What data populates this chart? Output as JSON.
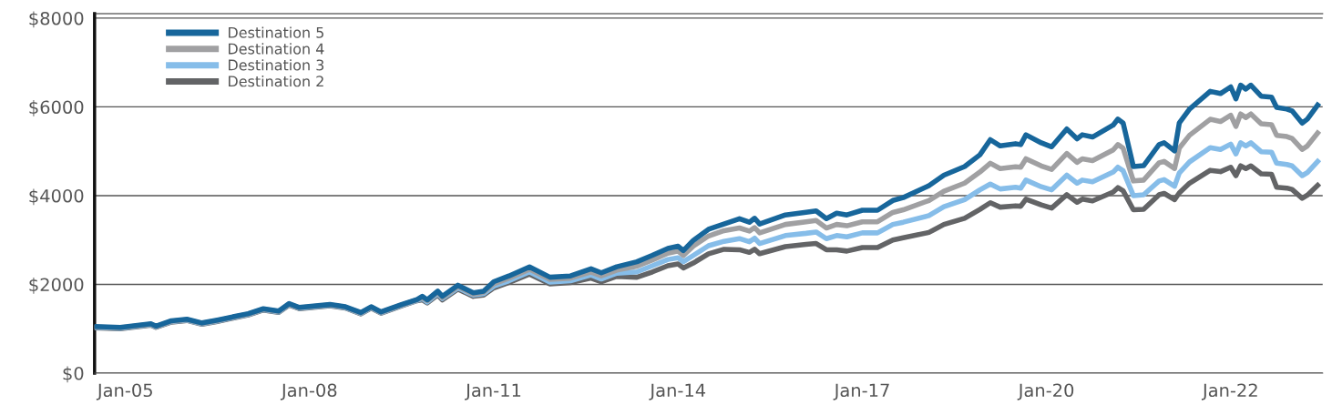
{
  "chart_data": {
    "type": "line",
    "x": [
      "2004-07",
      "2004-12",
      "2005-06",
      "2005-07",
      "2005-10",
      "2006-01",
      "2006-04",
      "2006-07",
      "2007-01",
      "2007-04",
      "2007-07",
      "2007-09",
      "2007-11",
      "2008-05",
      "2008-08",
      "2008-11",
      "2009-01",
      "2009-03",
      "2009-07",
      "2009-10",
      "2009-11",
      "2009-12",
      "2010-02",
      "2010-03",
      "2010-06",
      "2010-09",
      "2010-11",
      "2011-01",
      "2011-04",
      "2011-08",
      "2011-12",
      "2012-04",
      "2012-08",
      "2012-10",
      "2013-01",
      "2013-05",
      "2013-08",
      "2013-11",
      "2014-01",
      "2014-02",
      "2014-04",
      "2014-07",
      "2014-10",
      "2015-01",
      "2015-03",
      "2015-04",
      "2015-05",
      "2015-10",
      "2016-02",
      "2016-04",
      "2016-06",
      "2016-08",
      "2016-10",
      "2017-01",
      "2017-04",
      "2017-07",
      "2017-09",
      "2018-02",
      "2018-05",
      "2018-09",
      "2018-12",
      "2019-02",
      "2019-04",
      "2019-07",
      "2019-08",
      "2019-09",
      "2019-12",
      "2020-02",
      "2020-05",
      "2020-07",
      "2020-08",
      "2020-10",
      "2021-02",
      "2021-03",
      "2021-04",
      "2021-06",
      "2021-08",
      "2021-11",
      "2021-12",
      "2022-02",
      "2022-03",
      "2022-05",
      "2022-09",
      "2022-11",
      "2023-01",
      "2023-02",
      "2023-03",
      "2023-04",
      "2023-05",
      "2023-07",
      "2023-09",
      "2023-10",
      "2023-12",
      "2024-01",
      "2024-03",
      "2024-04",
      "2024-06"
    ],
    "series": [
      {
        "name": "Destination 5",
        "color": "#17669b",
        "values": [
          1050,
          1030,
          1110,
          1060,
          1180,
          1215,
          1130,
          1195,
          1340,
          1450,
          1400,
          1565,
          1480,
          1545,
          1495,
          1365,
          1495,
          1380,
          1545,
          1660,
          1730,
          1650,
          1845,
          1730,
          1980,
          1810,
          1845,
          2060,
          2190,
          2395,
          2160,
          2190,
          2350,
          2260,
          2395,
          2510,
          2655,
          2810,
          2860,
          2760,
          2990,
          3240,
          3360,
          3480,
          3400,
          3490,
          3360,
          3565,
          3625,
          3655,
          3480,
          3605,
          3565,
          3670,
          3670,
          3890,
          3955,
          4225,
          4460,
          4655,
          4920,
          5260,
          5120,
          5170,
          5150,
          5370,
          5190,
          5100,
          5500,
          5280,
          5370,
          5320,
          5590,
          5725,
          5635,
          4655,
          4675,
          5150,
          5190,
          5010,
          5635,
          5950,
          6350,
          6300,
          6450,
          6180,
          6490,
          6400,
          6490,
          6240,
          6220,
          5990,
          5950,
          5910,
          5635,
          5725,
          6040
        ]
      },
      {
        "name": "Destination 4",
        "color": "#a0a0a2",
        "values": [
          1040,
          1020,
          1100,
          1050,
          1170,
          1205,
          1120,
          1185,
          1330,
          1440,
          1390,
          1555,
          1470,
          1535,
          1485,
          1355,
          1485,
          1370,
          1535,
          1650,
          1700,
          1630,
          1820,
          1700,
          1950,
          1780,
          1820,
          2010,
          2140,
          2340,
          2110,
          2140,
          2280,
          2190,
          2320,
          2410,
          2550,
          2700,
          2750,
          2650,
          2860,
          3090,
          3210,
          3270,
          3200,
          3280,
          3160,
          3350,
          3410,
          3440,
          3270,
          3350,
          3320,
          3410,
          3410,
          3620,
          3680,
          3890,
          4100,
          4280,
          4530,
          4730,
          4610,
          4650,
          4640,
          4830,
          4670,
          4590,
          4950,
          4750,
          4830,
          4790,
          5030,
          5150,
          5070,
          4330,
          4350,
          4740,
          4770,
          4610,
          5070,
          5360,
          5720,
          5670,
          5810,
          5560,
          5840,
          5760,
          5840,
          5620,
          5600,
          5360,
          5330,
          5290,
          5040,
          5120,
          5410
        ]
      },
      {
        "name": "Destination 3",
        "color": "#86bde9",
        "values": [
          1030,
          1010,
          1090,
          1040,
          1160,
          1195,
          1110,
          1175,
          1320,
          1430,
          1380,
          1545,
          1460,
          1525,
          1475,
          1345,
          1475,
          1360,
          1525,
          1640,
          1680,
          1600,
          1790,
          1680,
          1920,
          1760,
          1790,
          1960,
          2080,
          2280,
          2050,
          2080,
          2210,
          2120,
          2250,
          2280,
          2420,
          2560,
          2600,
          2510,
          2650,
          2870,
          2970,
          3030,
          2960,
          3040,
          2920,
          3100,
          3150,
          3180,
          3030,
          3100,
          3070,
          3160,
          3160,
          3350,
          3400,
          3550,
          3750,
          3910,
          4130,
          4260,
          4150,
          4190,
          4170,
          4350,
          4200,
          4130,
          4460,
          4280,
          4350,
          4310,
          4530,
          4640,
          4560,
          4000,
          4020,
          4330,
          4360,
          4210,
          4510,
          4760,
          5080,
          5040,
          5160,
          4940,
          5190,
          5120,
          5190,
          4990,
          4980,
          4730,
          4700,
          4670,
          4450,
          4520,
          4770
        ]
      },
      {
        "name": "Destination 2",
        "color": "#636466",
        "values": [
          1020,
          1000,
          1080,
          1030,
          1150,
          1185,
          1100,
          1165,
          1310,
          1420,
          1370,
          1535,
          1450,
          1515,
          1465,
          1335,
          1465,
          1350,
          1515,
          1630,
          1650,
          1580,
          1760,
          1650,
          1890,
          1730,
          1760,
          1920,
          2040,
          2230,
          2010,
          2040,
          2140,
          2060,
          2180,
          2160,
          2280,
          2420,
          2460,
          2370,
          2480,
          2690,
          2790,
          2780,
          2720,
          2790,
          2690,
          2850,
          2900,
          2920,
          2780,
          2780,
          2750,
          2830,
          2830,
          3000,
          3050,
          3170,
          3350,
          3490,
          3690,
          3840,
          3740,
          3770,
          3760,
          3920,
          3790,
          3720,
          4020,
          3850,
          3920,
          3880,
          4080,
          4180,
          4110,
          3680,
          3690,
          4020,
          4050,
          3910,
          4060,
          4280,
          4570,
          4540,
          4640,
          4450,
          4670,
          4610,
          4670,
          4490,
          4480,
          4190,
          4170,
          4140,
          3940,
          4010,
          4230
        ]
      }
    ],
    "xlim": [
      "2004-07",
      "2024-07"
    ],
    "xticks": [
      {
        "value": "2005-01",
        "label": "Jan-05"
      },
      {
        "value": "2008-01",
        "label": "Jan-08"
      },
      {
        "value": "2011-01",
        "label": "Jan-11"
      },
      {
        "value": "2014-01",
        "label": "Jan-14"
      },
      {
        "value": "2017-01",
        "label": "Jan-17"
      },
      {
        "value": "2020-01",
        "label": "Jan-20"
      },
      {
        "value": "2023-01",
        "label": "Jan-22"
      }
    ],
    "ylim": [
      0,
      8100
    ],
    "yticks": [
      {
        "value": 0,
        "label": "$0"
      },
      {
        "value": 2000,
        "label": "$2000"
      },
      {
        "value": 4000,
        "label": "$4000"
      },
      {
        "value": 6000,
        "label": "$6000"
      },
      {
        "value": 8000,
        "label": "$8000"
      }
    ],
    "grid": "y",
    "legend": "top left",
    "line_style": "solid",
    "marker": "none"
  }
}
